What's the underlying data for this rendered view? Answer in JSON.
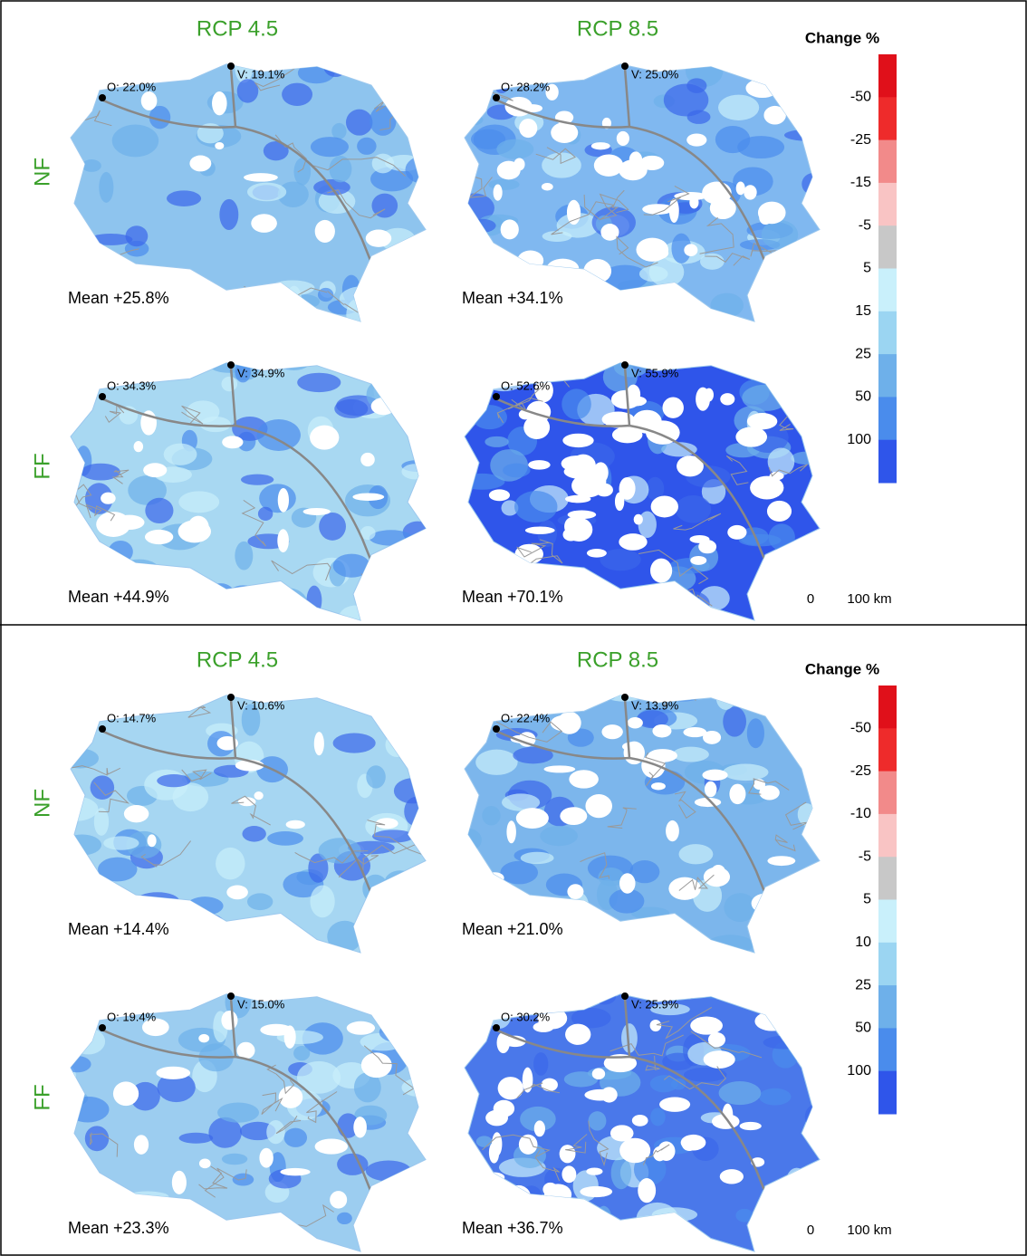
{
  "panels": [
    {
      "columns": [
        "RCP 4.5",
        "RCP 8.5"
      ],
      "rows": [
        "NF",
        "FF"
      ],
      "maps": [
        {
          "o": "O: 22.0%",
          "v": "V: 19.1%",
          "mean": "Mean +25.8%"
        },
        {
          "o": "O: 28.2%",
          "v": "V: 25.0%",
          "mean": "Mean +34.1%"
        },
        {
          "o": "O: 34.3%",
          "v": "V: 34.9%",
          "mean": "Mean +44.9%"
        },
        {
          "o": "O: 52.6%",
          "v": "V: 55.9%",
          "mean": "Mean +70.1%"
        }
      ],
      "legend": {
        "title": "Change %",
        "labels": [
          "-50",
          "-25",
          "-15",
          "-5",
          "5",
          "15",
          "25",
          "50",
          "100"
        ],
        "colors": [
          "#e0101a",
          "#ee2b2b",
          "#f28a8a",
          "#f9c4c4",
          "#c8c8c8",
          "#c9f0fb",
          "#9bd5f2",
          "#6eb0ea",
          "#4a8cec",
          "#2f55ea"
        ]
      },
      "scale": [
        "0",
        "100 km"
      ]
    },
    {
      "columns": [
        "RCP 4.5",
        "RCP 8.5"
      ],
      "rows": [
        "NF",
        "FF"
      ],
      "maps": [
        {
          "o": "O: 14.7%",
          "v": "V: 10.6%",
          "mean": "Mean +14.4%"
        },
        {
          "o": "O: 22.4%",
          "v": "V: 13.9%",
          "mean": "Mean +21.0%"
        },
        {
          "o": "O: 19.4%",
          "v": "V: 15.0%",
          "mean": "Mean +23.3%"
        },
        {
          "o": "O: 30.2%",
          "v": "V: 25.9%",
          "mean": "Mean +36.7%"
        }
      ],
      "legend": {
        "title": "Change %",
        "labels": [
          "-50",
          "-25",
          "-10",
          "-5",
          "5",
          "10",
          "25",
          "50",
          "100"
        ],
        "colors": [
          "#e0101a",
          "#ee2b2b",
          "#f28a8a",
          "#f9c4c4",
          "#c8c8c8",
          "#c9f0fb",
          "#9bd5f2",
          "#6eb0ea",
          "#4a8cec",
          "#2f55ea"
        ]
      },
      "scale": [
        "0",
        "100 km"
      ]
    }
  ]
}
